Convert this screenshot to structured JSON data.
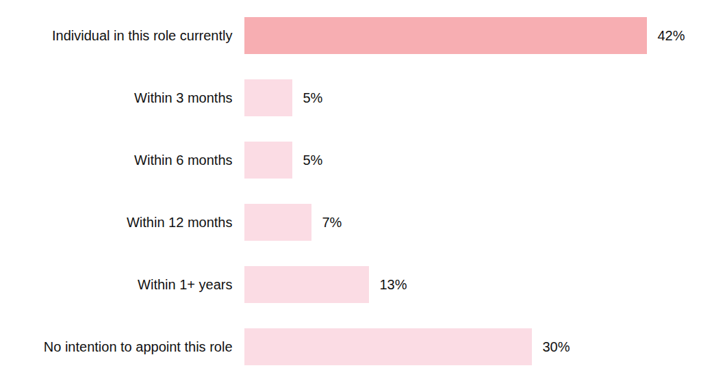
{
  "chart_data": {
    "type": "bar",
    "orientation": "horizontal",
    "categories": [
      "Individual in this role currently",
      "Within 3 months",
      "Within 6 months",
      "Within 12 months",
      "Within 1+ years",
      "No intention to appoint this role"
    ],
    "values": [
      42,
      5,
      5,
      7,
      13,
      30
    ],
    "value_labels": [
      "42%",
      "5%",
      "5%",
      "7%",
      "13%",
      "30%"
    ],
    "colors": [
      "#f7aeb2",
      "#fbdce4",
      "#fbdce4",
      "#fbdce4",
      "#fbdce4",
      "#fbdce4"
    ],
    "xlim": [
      0,
      42
    ],
    "data_labels": true,
    "tick_labels": "y",
    "grid": false
  }
}
